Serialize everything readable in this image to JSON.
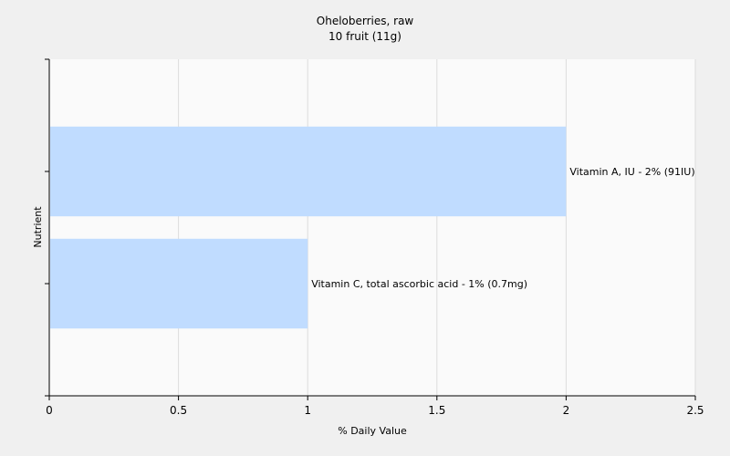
{
  "chart_data": {
    "type": "bar",
    "orientation": "horizontal",
    "title": "Oheloberries, raw",
    "subtitle": "10 fruit (11g)",
    "xlabel": "% Daily Value",
    "ylabel": "Nutrient",
    "xlim": [
      0,
      2.5
    ],
    "xticks": [
      "0",
      "0.5",
      "1",
      "1.5",
      "2",
      "2.5"
    ],
    "grid": true,
    "categories": [
      "Vitamin A, IU",
      "Vitamin C, total ascorbic acid"
    ],
    "values": [
      2,
      1
    ],
    "data_labels": [
      "Vitamin A, IU - 2% (91IU)",
      "Vitamin C, total ascorbic acid - 1% (0.7mg)"
    ],
    "bar_color": "#c0dcff"
  }
}
